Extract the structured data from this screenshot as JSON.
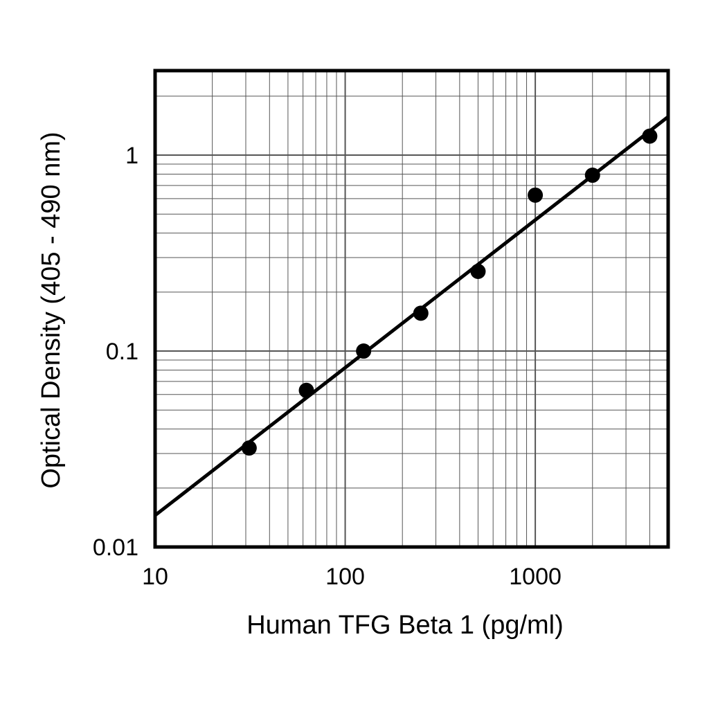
{
  "chart_data": {
    "type": "scatter",
    "xlabel": "Human TFG Beta 1 (pg/ml)",
    "ylabel": "Optical Density (405 - 490 nm)",
    "x_scale": "log",
    "y_scale": "log",
    "xlim": [
      10,
      5000
    ],
    "ylim": [
      0.01,
      2.7
    ],
    "x_ticks": [
      {
        "value": 10,
        "label": "10"
      },
      {
        "value": 100,
        "label": "100"
      },
      {
        "value": 1000,
        "label": "1000"
      }
    ],
    "y_ticks": [
      {
        "value": 0.01,
        "label": "0.01"
      },
      {
        "value": 0.1,
        "label": "0.1"
      },
      {
        "value": 1,
        "label": "1"
      }
    ],
    "grid": true,
    "series": [
      {
        "kind": "points",
        "x": [
          31.25,
          62.5,
          125,
          250,
          500,
          1000,
          2000,
          4000
        ],
        "y": [
          0.032,
          0.063,
          0.1,
          0.156,
          0.255,
          0.625,
          0.79,
          1.25
        ]
      },
      {
        "kind": "fit-line",
        "x": [
          10,
          5000
        ],
        "y": [
          0.0145,
          1.57
        ]
      }
    ],
    "colors": {
      "ink": "#000000",
      "grid": "#555555",
      "background": "#ffffff"
    }
  }
}
